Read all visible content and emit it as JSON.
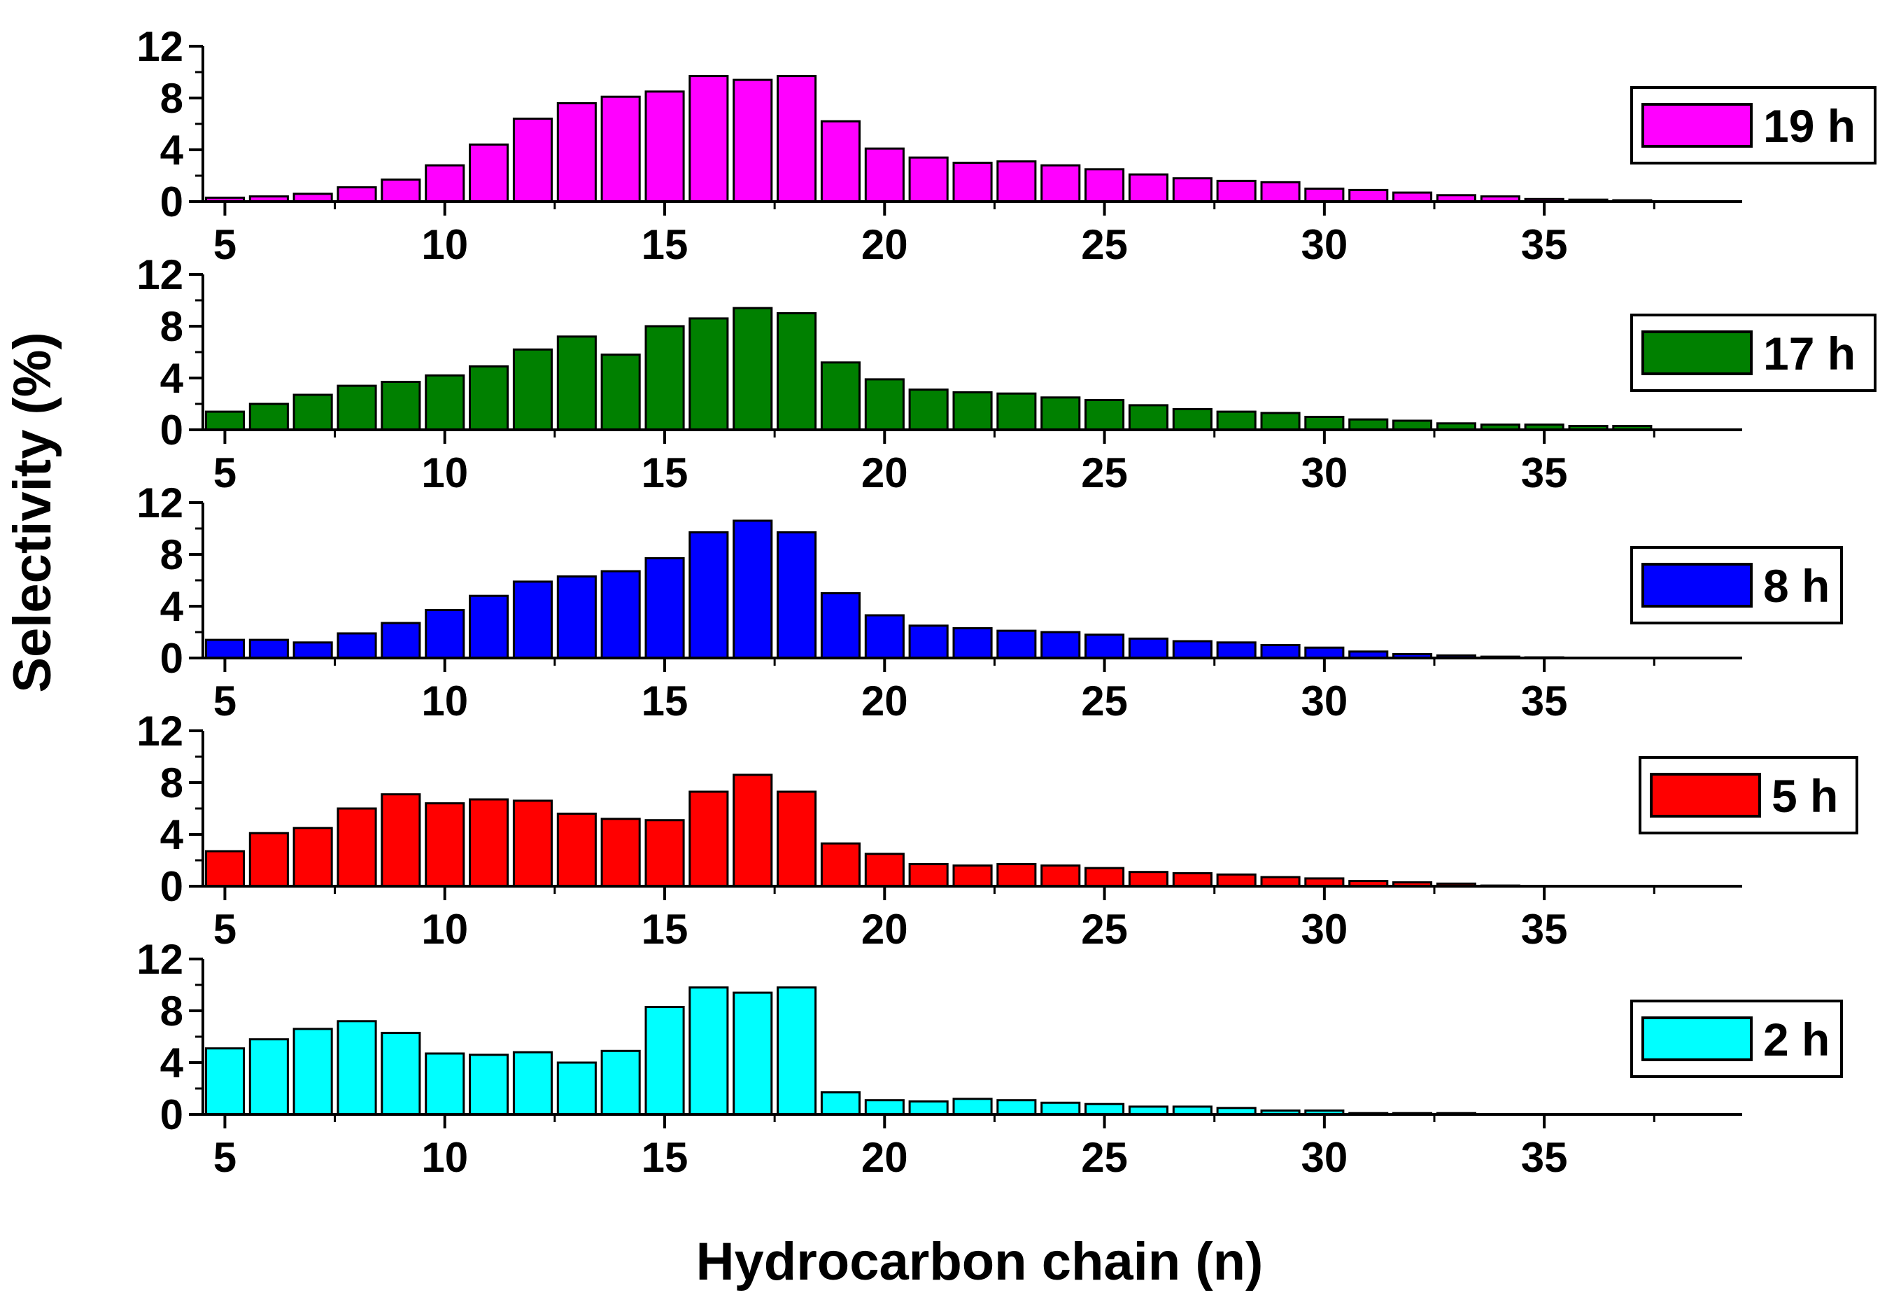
{
  "chart_data": {
    "type": "bar",
    "layout": "stacked-panels",
    "xlabel": "Hydrocarbon chain (n)",
    "ylabel": "Selectivity (%)",
    "xlim": [
      4.5,
      39.5
    ],
    "ylim": [
      0,
      12
    ],
    "x_ticks": [
      5,
      10,
      15,
      20,
      25,
      30,
      35
    ],
    "y_ticks": [
      0,
      4,
      8,
      12
    ],
    "categories": [
      5,
      6,
      7,
      8,
      9,
      10,
      11,
      12,
      13,
      14,
      15,
      16,
      17,
      18,
      19,
      20,
      21,
      22,
      23,
      24,
      25,
      26,
      27,
      28,
      29,
      30,
      31,
      32,
      33,
      34,
      35,
      36,
      37
    ],
    "series": [
      {
        "name": "19 h",
        "color": "#ff00ff",
        "values": [
          0.3,
          0.4,
          0.6,
          1.1,
          1.7,
          2.8,
          4.4,
          6.4,
          7.6,
          8.1,
          8.5,
          9.7,
          9.4,
          9.7,
          6.2,
          4.1,
          3.4,
          3.0,
          3.1,
          2.8,
          2.5,
          2.1,
          1.8,
          1.6,
          1.5,
          1.0,
          0.9,
          0.7,
          0.5,
          0.4,
          0.2,
          0.15,
          0.1
        ]
      },
      {
        "name": "17 h",
        "color": "#008000",
        "values": [
          1.4,
          2.0,
          2.7,
          3.4,
          3.7,
          4.2,
          4.9,
          6.2,
          7.2,
          5.8,
          8.0,
          8.6,
          9.4,
          9.0,
          5.2,
          3.9,
          3.1,
          2.9,
          2.8,
          2.5,
          2.3,
          1.9,
          1.6,
          1.4,
          1.3,
          1.0,
          0.8,
          0.7,
          0.5,
          0.4,
          0.4,
          0.3,
          0.3
        ]
      },
      {
        "name": "8 h",
        "color": "#0000ff",
        "values": [
          1.4,
          1.4,
          1.2,
          1.9,
          2.7,
          3.7,
          4.8,
          5.9,
          6.3,
          6.7,
          7.7,
          9.7,
          10.6,
          9.7,
          5.0,
          3.3,
          2.5,
          2.3,
          2.1,
          2.0,
          1.8,
          1.5,
          1.3,
          1.2,
          1.0,
          0.8,
          0.5,
          0.3,
          0.2,
          0.1,
          0.05,
          0,
          0
        ]
      },
      {
        "name": "5 h",
        "color": "#ff0000",
        "values": [
          2.7,
          4.1,
          4.5,
          6.0,
          7.1,
          6.4,
          6.7,
          6.6,
          5.6,
          5.2,
          5.1,
          7.3,
          8.6,
          7.3,
          3.3,
          2.5,
          1.7,
          1.6,
          1.7,
          1.6,
          1.4,
          1.1,
          1.0,
          0.9,
          0.7,
          0.6,
          0.4,
          0.3,
          0.2,
          0.05,
          0,
          0,
          0
        ]
      },
      {
        "name": "2 h",
        "color": "#00ffff",
        "values": [
          5.1,
          5.8,
          6.6,
          7.2,
          6.3,
          4.7,
          4.6,
          4.8,
          4.0,
          4.9,
          8.3,
          9.8,
          9.4,
          9.8,
          1.7,
          1.1,
          1.0,
          1.2,
          1.1,
          0.9,
          0.8,
          0.6,
          0.6,
          0.5,
          0.3,
          0.3,
          0.1,
          0.1,
          0.1,
          0,
          0,
          0,
          0
        ]
      }
    ],
    "legend_position": "right of each panel"
  }
}
